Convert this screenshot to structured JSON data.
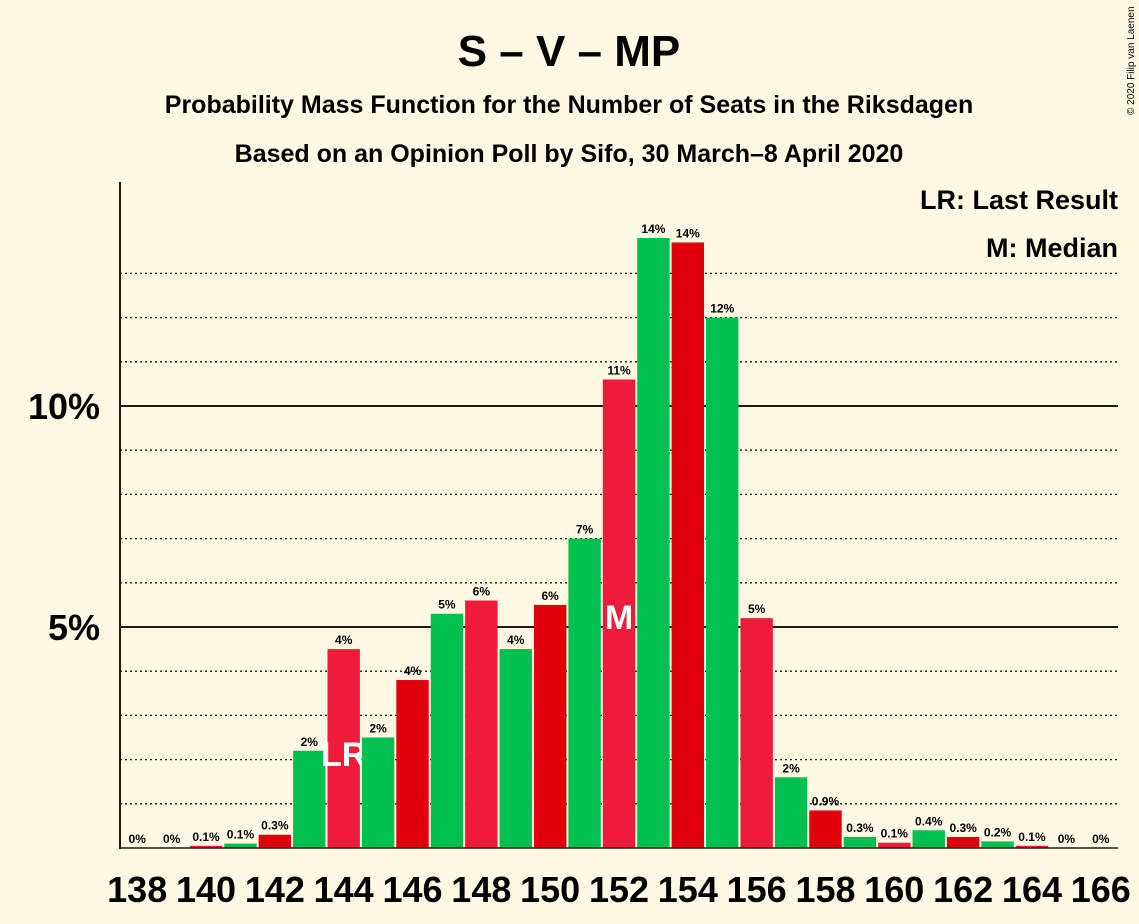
{
  "chart_data": {
    "type": "bar",
    "title": "S – V – MP",
    "subtitle_lines": [
      "Probability Mass Function for the Number of Seats in the Riksdagen",
      "Based on an Opinion Poll by Sifo, 30 March–8 April 2020"
    ],
    "credit": "© 2020 Filip van Laenen",
    "legend": [
      "LR: Last Result",
      "M: Median"
    ],
    "y_ticks": [
      {
        "value": 5,
        "label": "5%"
      },
      {
        "value": 10,
        "label": "10%"
      }
    ],
    "ylim": [
      0,
      15
    ],
    "grid": true,
    "x": [
      138,
      139,
      140,
      141,
      142,
      143,
      144,
      145,
      146,
      147,
      148,
      149,
      150,
      151,
      152,
      153,
      154,
      155,
      156,
      157,
      158,
      159,
      160,
      161,
      162,
      163,
      164,
      165,
      166
    ],
    "x_tick_labels": [
      "138",
      "140",
      "142",
      "144",
      "146",
      "148",
      "150",
      "152",
      "154",
      "156",
      "158",
      "160",
      "162",
      "164",
      "166"
    ],
    "values": [
      0,
      0,
      0.05,
      0.1,
      0.3,
      2.2,
      4.5,
      2.5,
      3.8,
      5.3,
      5.6,
      4.5,
      5.5,
      7.0,
      10.6,
      13.8,
      13.7,
      12.0,
      5.2,
      1.6,
      0.85,
      0.25,
      0.12,
      0.4,
      0.25,
      0.15,
      0.05,
      0,
      0
    ],
    "data_labels": [
      "0%",
      "0%",
      "0.1%",
      "0.1%",
      "0.3%",
      "2%",
      "4%",
      "2%",
      "4%",
      "5%",
      "6%",
      "4%",
      "6%",
      "7%",
      "11%",
      "14%",
      "14%",
      "12%",
      "5%",
      "2%",
      "0.9%",
      "0.3%",
      "0.1%",
      "0.4%",
      "0.3%",
      "0.2%",
      "0.1%",
      "0%",
      "0%"
    ],
    "last_result_seat": 144,
    "last_result_marker": "LR",
    "median_seat": 152,
    "median_marker": "M",
    "colors": {
      "background": "#fff9e4",
      "green": "#00c050",
      "red_light": "#ee1c3a",
      "red_dark": "#e0000b",
      "text": "#1a1a1a"
    }
  }
}
